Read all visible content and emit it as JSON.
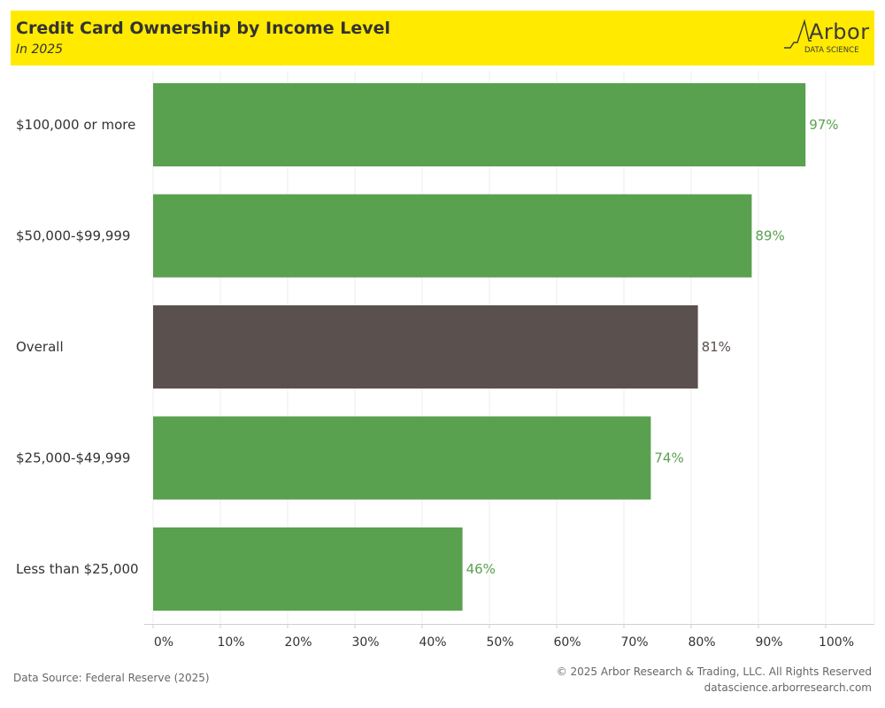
{
  "header": {
    "logo_word": "Arbor",
    "logo_sub": "DATA SCIENCE"
  },
  "chart_data": {
    "type": "bar",
    "orientation": "horizontal",
    "title": "Credit Card Ownership by Income Level",
    "subtitle": "In 2025",
    "categories": [
      "$100,000 or more",
      "$50,000-$99,999",
      "Overall",
      "$25,000-$49,999",
      "Less than $25,000"
    ],
    "values": [
      97,
      89,
      81,
      74,
      46
    ],
    "value_labels": [
      "97%",
      "89%",
      "81%",
      "74%",
      "46%"
    ],
    "bar_colors": [
      "#59a14f",
      "#59a14f",
      "#5a504d",
      "#59a14f",
      "#59a14f"
    ],
    "label_colors": [
      "#59a14f",
      "#59a14f",
      "#5a504d",
      "#59a14f",
      "#59a14f"
    ],
    "xlim": [
      0,
      100
    ],
    "xticks": [
      0,
      10,
      20,
      30,
      40,
      50,
      60,
      70,
      80,
      90,
      100
    ],
    "xtick_labels": [
      "0%",
      "10%",
      "20%",
      "30%",
      "40%",
      "50%",
      "60%",
      "70%",
      "80%",
      "90%",
      "100%"
    ],
    "xlabel": "",
    "ylabel": "",
    "grid": "vertical",
    "legend": "none"
  },
  "footer": {
    "source": "Data Source: Federal Reserve (2025)",
    "copyright": "© 2025 Arbor Research & Trading, LLC. All Rights Reserved",
    "website": "datascience.arborresearch.com"
  },
  "colors": {
    "header_background": "#ffea00",
    "income_bar": "#59a14f",
    "overall_bar": "#5a504d",
    "gridline": "#ececec"
  }
}
